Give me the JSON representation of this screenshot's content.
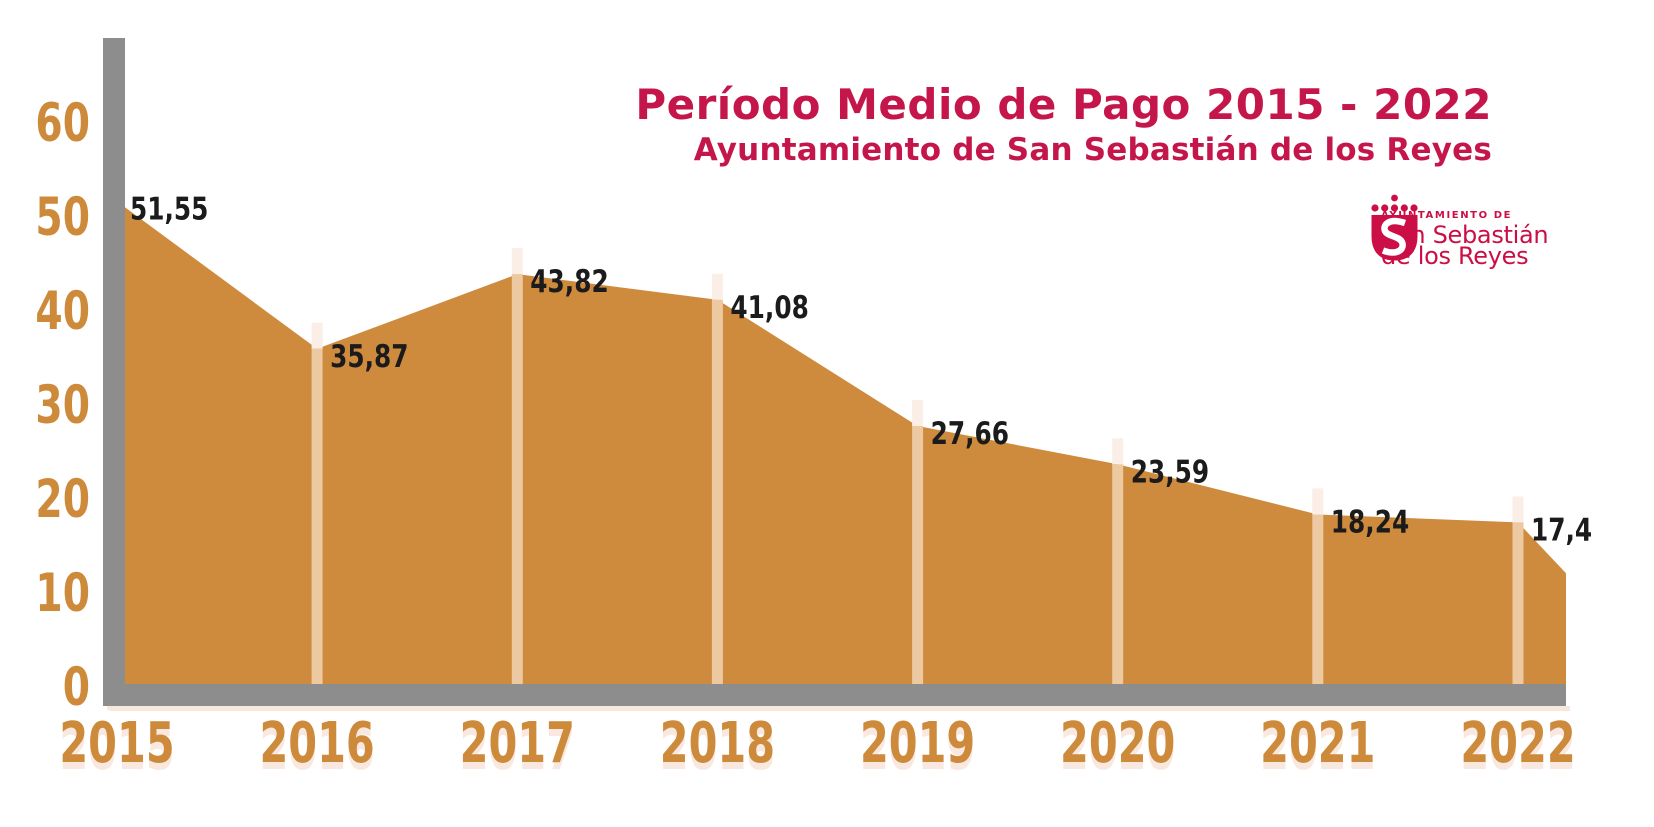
{
  "title": "Período Medio de Pago 2015 - 2022",
  "subtitle": "Ayuntamiento de San Sebastián de los Reyes",
  "logo": {
    "line1": "AYUNTAMIENTO DE",
    "line2": "San Sebastián",
    "line3": "de los Reyes"
  },
  "colors": {
    "accent_red": "#c5164c",
    "logo_red": "#cb0e45",
    "area_orange": "#cf8b3d",
    "axis_label_orange": "#cd8a3b",
    "marker_stripe": "#ecc9a0",
    "marker_stripe_cap": "#faeee6",
    "axis_gray": "#8d8d8d",
    "axis_shadow": "#f6e8dc",
    "value_label_black": "#1b1b1b"
  },
  "chart_data": {
    "type": "area",
    "title": "Período Medio de Pago 2015 - 2022",
    "subtitle": "Ayuntamiento de San Sebastián de los Reyes",
    "categories": [
      "2015",
      "2016",
      "2017",
      "2018",
      "2019",
      "2020",
      "2021",
      "2022"
    ],
    "values": [
      51.55,
      35.87,
      43.82,
      41.08,
      27.66,
      23.59,
      18.24,
      17.4
    ],
    "value_labels": [
      "51,55",
      "35,87",
      "43,82",
      "41,08",
      "27,66",
      "23,59",
      "18,24",
      "17,4"
    ],
    "y_ticks": [
      0,
      10,
      20,
      30,
      40,
      50,
      60
    ],
    "y_tick_labels": [
      "0",
      "10",
      "20",
      "30",
      "40",
      "50",
      "60"
    ],
    "ylim": [
      0,
      60
    ],
    "xlabel": "",
    "ylabel": "",
    "grid": false,
    "legend": "none",
    "layout_hints": {
      "year_marker_stripes": [
        "2016",
        "2017",
        "2018",
        "2019",
        "2020",
        "2021",
        "2022"
      ],
      "area_extends_past_last_point": true,
      "right_edge_value": 12
    }
  }
}
